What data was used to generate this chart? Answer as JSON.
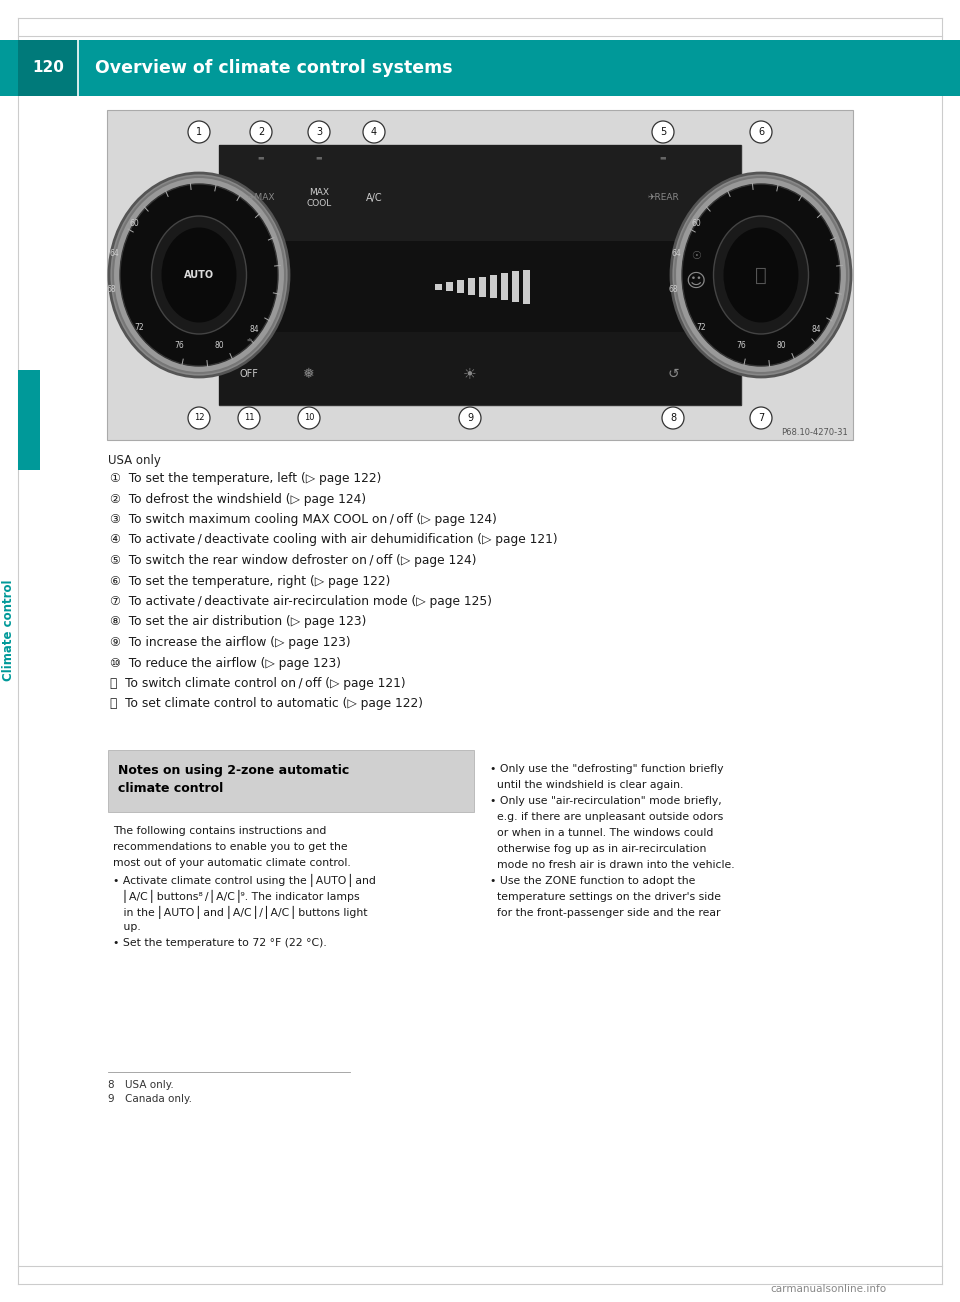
{
  "page_num": "120",
  "header_title": "Overview of climate control systems",
  "header_bg": "#009999",
  "page_bg": "#ffffff",
  "sidebar_color": "#009999",
  "sidebar_text": "Climate control",
  "figure_ref": "P68.10-4270-31",
  "usa_only": "USA only",
  "items": [
    {
      "num": 1,
      "text": "To set the temperature, left (▷ page 122)"
    },
    {
      "num": 2,
      "text": "To defrost the windshield (▷ page 124)"
    },
    {
      "num": 3,
      "text": "To switch maximum cooling MAX COOL on / off (▷ page 124)"
    },
    {
      "num": 4,
      "text": "To activate / deactivate cooling with air dehumidification (▷ page 121)"
    },
    {
      "num": 5,
      "text": "To switch the rear window defroster on / off (▷ page 124)"
    },
    {
      "num": 6,
      "text": "To set the temperature, right (▷ page 122)"
    },
    {
      "num": 7,
      "text": "To activate / deactivate air-recirculation mode (▷ page 125)"
    },
    {
      "num": 8,
      "text": "To set the air distribution (▷ page 123)"
    },
    {
      "num": 9,
      "text": "To increase the airflow (▷ page 123)"
    },
    {
      "num": 10,
      "text": "To reduce the airflow (▷ page 123)"
    },
    {
      "num": 11,
      "text": "To switch climate control on / off (▷ page 121)"
    },
    {
      "num": 12,
      "text": "To set climate control to automatic (▷ page 122)"
    }
  ],
  "note_title": "Notes on using 2-zone automatic\nclimate control",
  "footnote_8": "8 USA only.",
  "footnote_9": "9 Canada only.",
  "watermark": "carmanualsonline.info"
}
